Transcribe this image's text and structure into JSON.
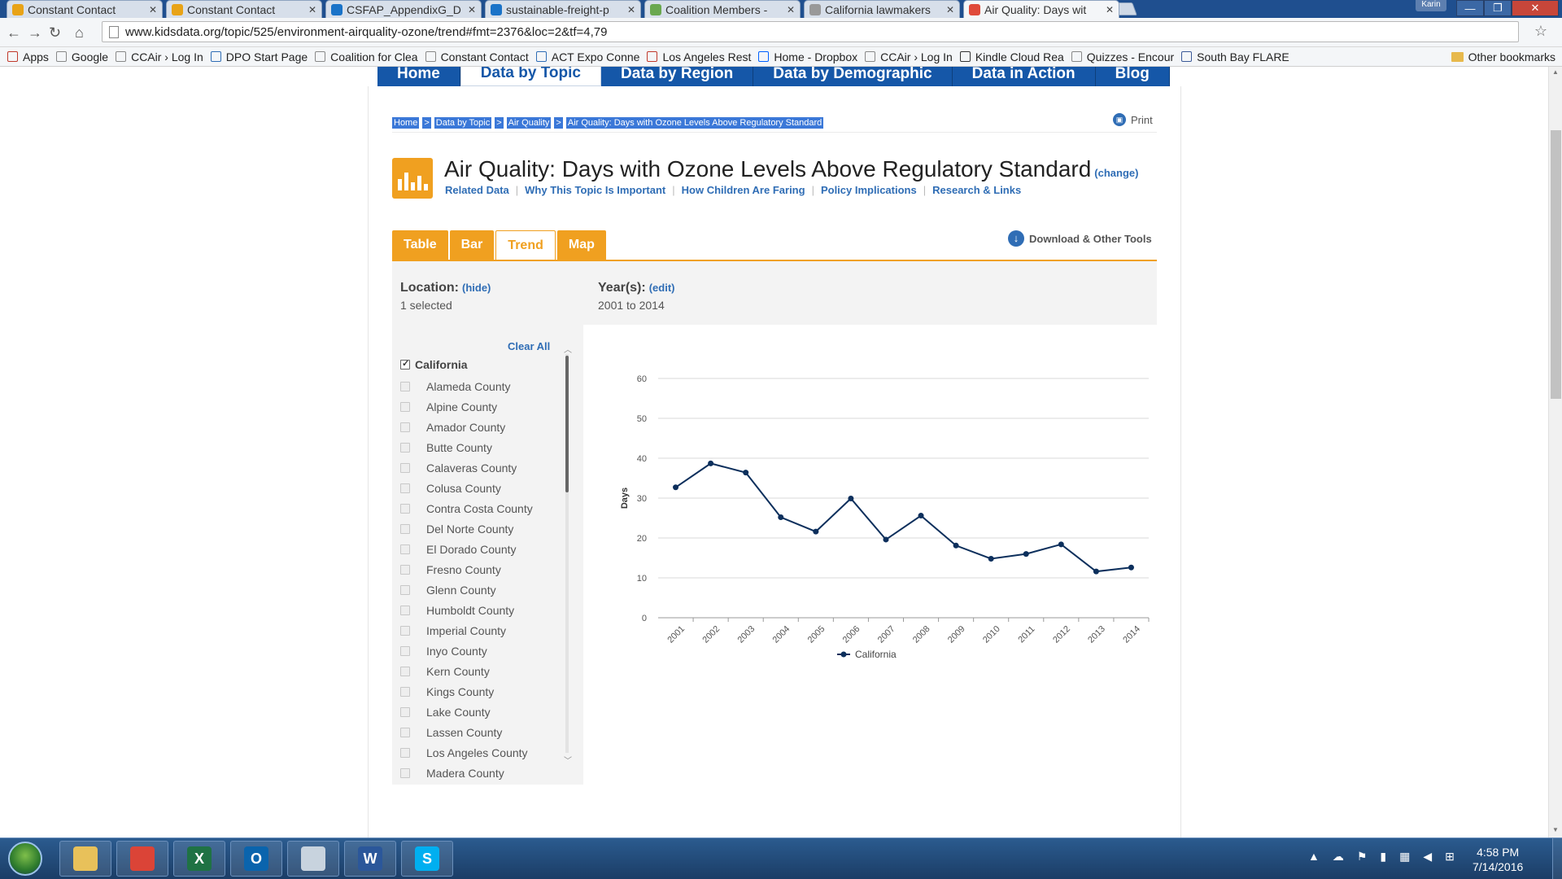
{
  "browser": {
    "tabs": [
      {
        "label": "Constant Contact",
        "fav_color": "#e8a317"
      },
      {
        "label": "Constant Contact",
        "fav_color": "#e8a317"
      },
      {
        "label": "CSFAP_AppendixG_D",
        "fav_color": "#1a73c8"
      },
      {
        "label": "sustainable-freight-p",
        "fav_color": "#1a73c8"
      },
      {
        "label": "Coalition Members -",
        "fav_color": "#6aa84f"
      },
      {
        "label": "California lawmakers",
        "fav_color": "#999999"
      },
      {
        "label": "Air Quality: Days wit",
        "fav_color": "#e04a3a"
      }
    ],
    "profile_name": "Karin",
    "url": "www.kidsdata.org/topic/525/environment-airquality-ozone/trend#fmt=2376&loc=2&tf=4,79",
    "bookmarks": [
      "Apps",
      "Google",
      "CCAir › Log In",
      "DPO Start Page",
      "Coalition for Clea",
      "Constant Contact",
      "ACT Expo Conne",
      "Los Angeles Rest",
      "Home - Dropbox",
      "CCAir › Log In",
      "Kindle Cloud Rea",
      "Quizzes - Encour",
      "South Bay FLARE"
    ],
    "other_bookmarks": "Other bookmarks"
  },
  "site": {
    "nav": [
      "Home",
      "Data by Topic",
      "Data by Region",
      "Data by Demographic",
      "Data in Action",
      "Blog"
    ],
    "breadcrumbs": [
      "Home",
      "Data by Topic",
      "Air Quality",
      "Air Quality: Days with Ozone Levels Above Regulatory Standard"
    ],
    "crumb_sep": ">",
    "print": "Print",
    "title": "Air Quality: Days with Ozone Levels Above Regulatory Standard",
    "change": "(change)",
    "sublinks": [
      "Related Data",
      "Why This Topic Is Important",
      "How Children Are Faring",
      "Policy Implications",
      "Research & Links"
    ],
    "view_tabs": [
      "Table",
      "Bar",
      "Trend",
      "Map"
    ],
    "active_tab": "Trend",
    "download": "Download & Other Tools",
    "filters": {
      "location_label": "Location:",
      "location_action": "(hide)",
      "location_value": "1 selected",
      "year_label": "Year(s):",
      "year_action": "(edit)",
      "year_value": "2001 to 2014"
    },
    "locations": {
      "clear_all": "Clear All",
      "root": "California",
      "counties": [
        "Alameda County",
        "Alpine County",
        "Amador County",
        "Butte County",
        "Calaveras County",
        "Colusa County",
        "Contra Costa County",
        "Del Norte County",
        "El Dorado County",
        "Fresno County",
        "Glenn County",
        "Humboldt County",
        "Imperial County",
        "Inyo County",
        "Kern County",
        "Kings County",
        "Lake County",
        "Lassen County",
        "Los Angeles County",
        "Madera County"
      ]
    }
  },
  "chart_data": {
    "type": "line",
    "x": [
      "2001",
      "2002",
      "2003",
      "2004",
      "2005",
      "2006",
      "2007",
      "2008",
      "2009",
      "2010",
      "2011",
      "2012",
      "2013",
      "2014"
    ],
    "series": [
      {
        "name": "California",
        "values": [
          32.7,
          38.7,
          36.4,
          25.2,
          21.6,
          29.9,
          19.6,
          25.6,
          18.1,
          14.8,
          16.0,
          18.4,
          11.6,
          12.6
        ]
      }
    ],
    "ylabel": "Days",
    "ylim": [
      0,
      60
    ],
    "yticks": [
      0,
      10,
      20,
      30,
      40,
      50,
      60
    ],
    "grid": true,
    "legend_position": "bottom-center",
    "line_color": "#0c2f5c"
  },
  "taskbar": {
    "apps": [
      {
        "name": "explorer",
        "glyph": "",
        "color": "#e8c15a"
      },
      {
        "name": "chrome",
        "glyph": "",
        "color": "#db4437"
      },
      {
        "name": "excel",
        "glyph": "X",
        "color": "#1f7244"
      },
      {
        "name": "outlook",
        "glyph": "O",
        "color": "#0a64ad"
      },
      {
        "name": "calculator",
        "glyph": "",
        "color": "#c8d3de"
      },
      {
        "name": "word",
        "glyph": "W",
        "color": "#2b579a"
      },
      {
        "name": "skype",
        "glyph": "S",
        "color": "#00aff0"
      }
    ],
    "time": "4:58 PM",
    "date": "7/14/2016"
  }
}
